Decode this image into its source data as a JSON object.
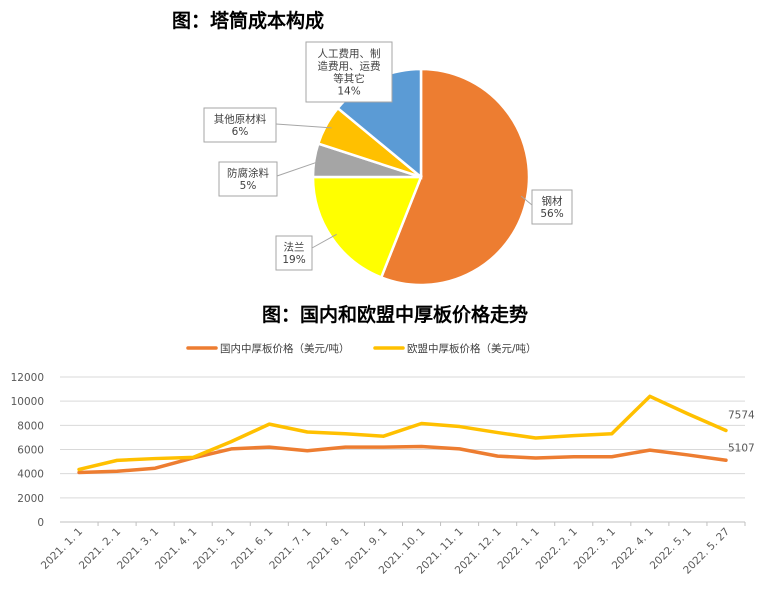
{
  "chart_data": [
    {
      "type": "pie",
      "title": "图：塔筒成本构成",
      "slices": [
        {
          "label": "钢材",
          "value": 56,
          "percent_label": "56%",
          "color": "#ED7D31"
        },
        {
          "label": "法兰",
          "value": 19,
          "percent_label": "19%",
          "color": "#FFFF00"
        },
        {
          "label": "防腐涂料",
          "value": 5,
          "percent_label": "5%",
          "color": "#A5A5A5"
        },
        {
          "label": "其他原材料",
          "value": 6,
          "percent_label": "6%",
          "color": "#FFC000"
        },
        {
          "label_lines": [
            "人工费用、制",
            "造费用、运费",
            "等其它"
          ],
          "value": 14,
          "percent_label": "14%",
          "color": "#5B9BD5"
        }
      ]
    },
    {
      "type": "line",
      "title": "图：国内和欧盟中厚板价格走势",
      "x": [
        "2021. 1. 1",
        "2021. 2. 1",
        "2021. 3. 1",
        "2021. 4. 1",
        "2021. 5. 1",
        "2021. 6. 1",
        "2021. 7. 1",
        "2021. 8. 1",
        "2021. 9. 1",
        "2021. 10. 1",
        "2021. 11. 1",
        "2021. 12. 1",
        "2022. 1. 1",
        "2022. 2. 1",
        "2022. 3. 1",
        "2022. 4. 1",
        "2022. 5. 1",
        "2022. 5. 27"
      ],
      "ylim": [
        0,
        12000
      ],
      "yticks": [
        "0",
        "2000",
        "4000",
        "6000",
        "8000",
        "10000",
        "12000"
      ],
      "grid": true,
      "legend_position": "top",
      "series": [
        {
          "name": "国内中厚板价格（美元/吨）",
          "color": "#ED7D31",
          "values": [
            4100,
            4200,
            4450,
            5300,
            6050,
            6200,
            5900,
            6200,
            6200,
            6250,
            6050,
            5450,
            5300,
            5400,
            5400,
            5950,
            5550,
            5107
          ],
          "end_label": "5107"
        },
        {
          "name": "欧盟中厚板价格（美元/吨）",
          "color": "#FFC000",
          "values": [
            4350,
            5100,
            5250,
            5350,
            6650,
            8100,
            7450,
            7300,
            7100,
            8150,
            7900,
            7400,
            6950,
            7150,
            7300,
            10400,
            8950,
            7574
          ],
          "end_label": "7574"
        }
      ]
    }
  ]
}
